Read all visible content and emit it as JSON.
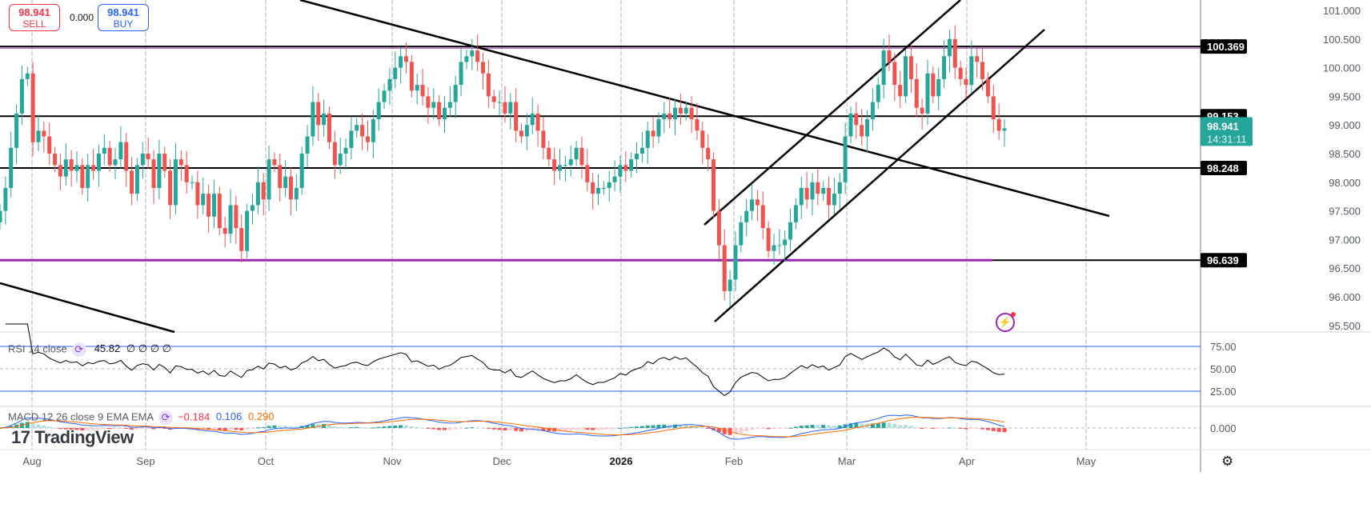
{
  "toolbar": {
    "sell_price": "98.941",
    "sell_label": "SELL",
    "spread": "0.000",
    "buy_price": "98.941",
    "buy_label": "BUY"
  },
  "branding": {
    "logo": "TradingView"
  },
  "colors": {
    "up": "#26a69a",
    "down": "#ef5350",
    "price_tag": "#26a69a",
    "rsi_band": "#2962ff",
    "macd": "#2962ff",
    "signal": "#ff6d00",
    "support": "#9c27b0"
  },
  "indicators": {
    "rsi": {
      "label": "RSI 14 close",
      "value": "45.82",
      "extra": "∅ ∅ ∅ ∅",
      "levels": [
        25,
        50,
        75
      ],
      "ticks": [
        "75.00",
        "50.00",
        "25.00"
      ]
    },
    "macd": {
      "label": "MACD 12 26 close 9 EMA EMA",
      "hist": "−0.184",
      "macd": "0.106",
      "signal": "0.290",
      "ticks": [
        "0.000"
      ]
    }
  },
  "price_tag": {
    "price": "98.941",
    "countdown": "14:31:11"
  },
  "chart_data": {
    "type": "candlestick",
    "ylim": [
      95.3,
      101.2
    ],
    "y_ticks": [
      "101.000",
      "100.500",
      "100.000",
      "99.500",
      "99.000",
      "98.500",
      "98.000",
      "97.500",
      "97.000",
      "96.500",
      "96.000",
      "95.500"
    ],
    "x_ticks": [
      "Aug",
      "Sep",
      "Oct",
      "Nov",
      "Dec",
      "2026",
      "Feb",
      "Mar",
      "Apr",
      "May"
    ],
    "levels": [
      {
        "price": 100.369,
        "label": "100.369"
      },
      {
        "price": 99.153,
        "label": "99.153"
      },
      {
        "price": 98.248,
        "label": "98.248"
      },
      {
        "price": 96.639,
        "label": "96.639"
      }
    ],
    "closes": [
      97.5,
      97.9,
      98.6,
      99.2,
      99.8,
      99.9,
      98.7,
      98.9,
      98.8,
      98.5,
      98.3,
      98.1,
      98.4,
      98.2,
      98.3,
      97.9,
      98.3,
      98.2,
      98.5,
      98.6,
      98.3,
      98.4,
      98.7,
      98.2,
      97.8,
      98.3,
      98.5,
      98.4,
      97.9,
      98.5,
      98.2,
      97.6,
      98.4,
      98.3,
      98.0,
      98.0,
      97.6,
      97.8,
      97.4,
      97.8,
      97.2,
      97.1,
      97.6,
      97.2,
      96.8,
      97.5,
      97.6,
      98.0,
      97.7,
      98.4,
      98.3,
      97.9,
      98.1,
      97.7,
      97.9,
      98.5,
      98.8,
      99.4,
      99.0,
      99.2,
      98.7,
      98.3,
      98.5,
      98.6,
      98.9,
      99.0,
      98.8,
      98.7,
      99.1,
      99.4,
      99.6,
      99.8,
      100.0,
      100.2,
      100.1,
      99.6,
      99.7,
      99.5,
      99.3,
      99.4,
      99.1,
      99.3,
      99.4,
      99.7,
      100.1,
      100.2,
      100.3,
      100.1,
      99.9,
      99.5,
      99.4,
      99.4,
      99.2,
      99.4,
      98.9,
      98.8,
      99.0,
      99.2,
      98.9,
      98.6,
      98.4,
      98.2,
      98.3,
      98.3,
      98.4,
      98.6,
      98.3,
      98.0,
      97.8,
      97.9,
      97.9,
      98.0,
      98.1,
      98.3,
      98.2,
      98.4,
      98.5,
      98.6,
      98.9,
      98.8,
      99.1,
      99.2,
      99.1,
      99.3,
      99.2,
      99.3,
      99.1,
      98.9,
      98.6,
      98.4,
      97.5,
      96.9,
      96.1,
      96.3,
      96.9,
      97.3,
      97.5,
      97.7,
      97.6,
      97.2,
      96.8,
      96.9,
      96.9,
      97.0,
      97.3,
      97.6,
      97.9,
      97.7,
      98.0,
      97.8,
      97.9,
      97.6,
      97.8,
      98.0,
      98.8,
      99.2,
      99.0,
      98.8,
      99.1,
      99.4,
      99.7,
      100.3,
      100.1,
      99.7,
      99.5,
      100.2,
      99.8,
      99.3,
      99.2,
      99.9,
      99.5,
      99.8,
      100.2,
      100.5,
      100.0,
      99.8,
      99.7,
      100.2,
      100.1,
      99.8,
      99.5,
      99.1,
      98.9,
      98.941
    ]
  }
}
